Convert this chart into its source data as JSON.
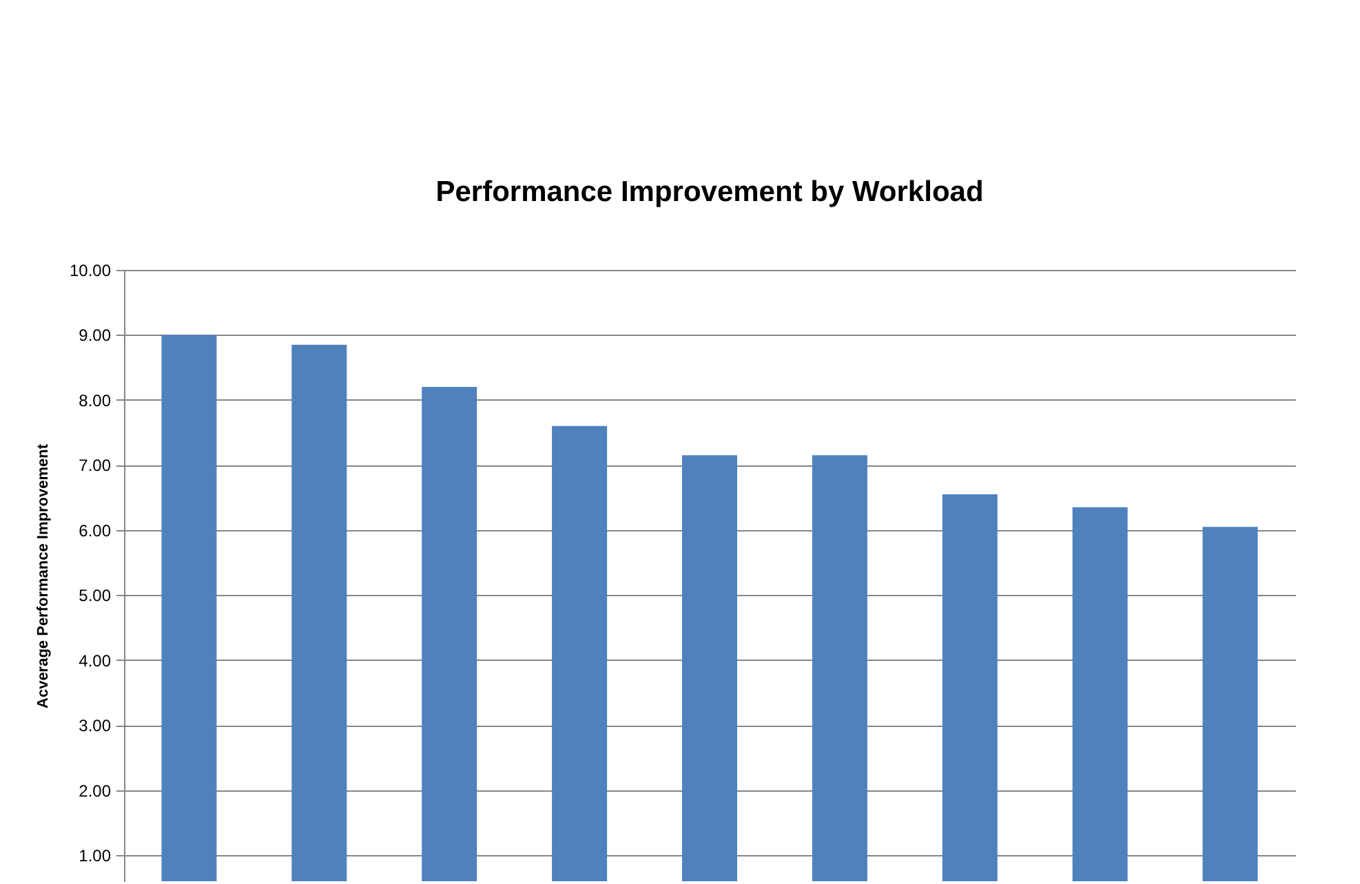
{
  "chart_data": {
    "type": "bar",
    "title": "Performance Improvement by Workload",
    "ylabel": "Acverage Performance Improvement",
    "categories": [
      null,
      null,
      null,
      null,
      null,
      null,
      null,
      null,
      null
    ],
    "series": [
      {
        "color": "#4f81bd",
        "values": [
          9.0,
          8.85,
          8.2,
          7.6,
          7.15,
          7.15,
          6.55,
          6.35,
          6.05
        ]
      }
    ],
    "ylim": [
      0.6,
      10
    ],
    "yticks": [
      {
        "value": 1,
        "label": "1.00"
      },
      {
        "value": 2,
        "label": "2.00"
      },
      {
        "value": 3,
        "label": "3.00"
      },
      {
        "value": 4,
        "label": "4.00"
      },
      {
        "value": 5,
        "label": "5.00"
      },
      {
        "value": 6,
        "label": "6.00"
      },
      {
        "value": 7,
        "label": "7.00"
      },
      {
        "value": 8,
        "label": "8.00"
      },
      {
        "value": 9,
        "label": "9.00"
      },
      {
        "value": 10,
        "label": "10.00"
      }
    ],
    "grid": "y",
    "tick_labels": "y"
  }
}
